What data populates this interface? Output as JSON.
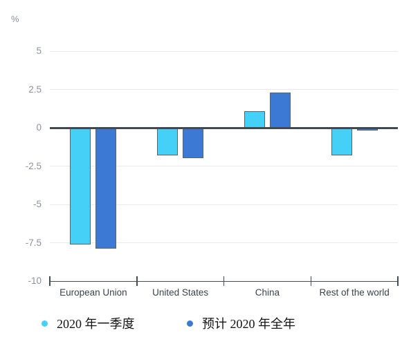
{
  "chart_data": {
    "type": "bar",
    "title": "",
    "ylabel": "%",
    "xlabel": "",
    "categories": [
      "European Union",
      "United States",
      "China",
      "Rest of the world"
    ],
    "series": [
      {
        "name": "2020 年一季度",
        "color": "#45d0f8",
        "values": [
          -7.6,
          -1.8,
          1.1,
          -1.8
        ]
      },
      {
        "name": "预计 2020 年全年",
        "color": "#3c79d4",
        "values": [
          -7.9,
          -2.0,
          2.3,
          -0.2
        ]
      }
    ],
    "ylim": [
      -10,
      5
    ],
    "yticks": [
      5,
      2.5,
      0,
      -2.5,
      -5,
      -7.5,
      -10
    ],
    "grid": true,
    "legend_position": "bottom",
    "colors": {
      "grid_line": "#e9eaec",
      "zero_line": "#41484f",
      "bar_border": "#57636f",
      "tick_label": "#8d939c",
      "category_label": "#3b424b",
      "legend_text": "#141414"
    }
  }
}
